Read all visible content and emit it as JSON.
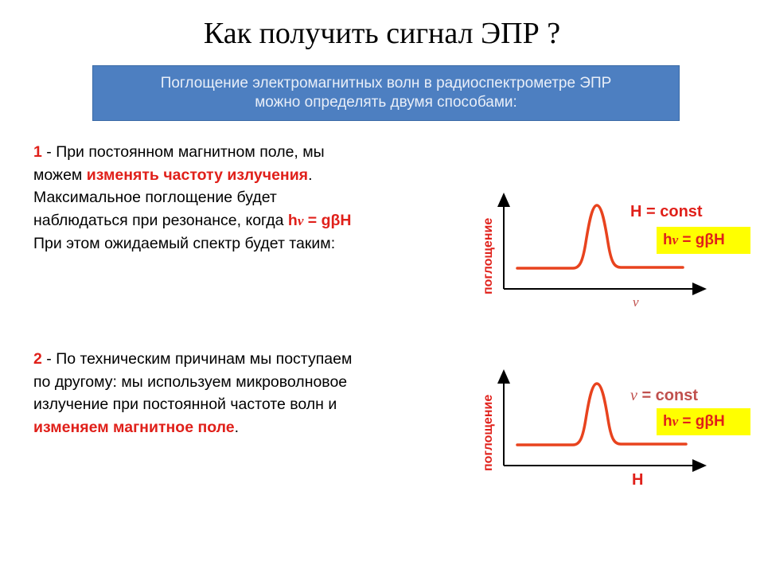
{
  "title": "Как получить сигнал ЭПР ?",
  "banner": {
    "line1": "Поглощение электромагнитных волн в радиоспектрометре ЭПР",
    "line2": "можно определять двумя способами:"
  },
  "method1": {
    "num": "1",
    "t1": " - При постоянном магнитном поле, мы",
    "t2": "можем ",
    "highlight": "изменять частоту излучения",
    "t3": ".",
    "t4": "Максимальное поглощение будет",
    "t5": "наблюдаться при резонансе, когда ",
    "formula_h": "h",
    "formula_nu": "ν",
    "formula_rest": " = gβH",
    "t6": "При этом ожидаемый спектр будет таким:"
  },
  "method2": {
    "num": "2",
    "t1": " - По техническим причинам мы поступаем",
    "t2": "по другому:  мы используем микроволновое",
    "t3": "излучение при постоянной частоте волн и",
    "highlight": "изменяем магнитное поле",
    "t4": "."
  },
  "graph1": {
    "ylabel": "поглощение",
    "xlabel": "ν",
    "condition": "H = const",
    "formula_h": "h",
    "formula_nu": "ν",
    "formula_rest": " = gβH"
  },
  "graph2": {
    "ylabel": "поглощение",
    "xlabel": "H",
    "condition_nu": "ν",
    "condition_rest": " = const",
    "formula_h": "h",
    "formula_nu": "ν",
    "formula_rest": " = gβH"
  },
  "colors": {
    "accent_red": "#e0201a",
    "banner_blue": "#4d7fc1",
    "highlight_yellow": "#ffff00"
  }
}
